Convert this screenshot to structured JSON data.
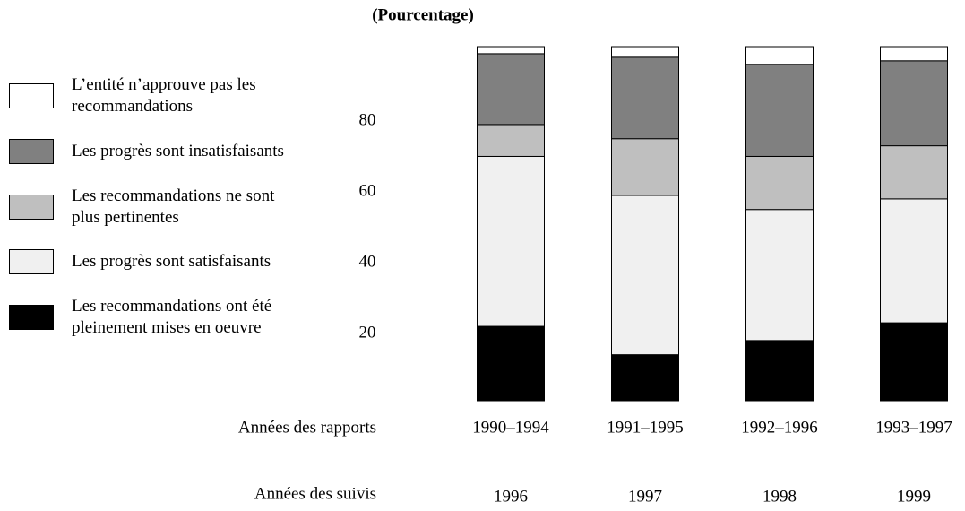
{
  "chart_data": {
    "type": "stacked_bar",
    "title": "(Pourcentage)",
    "categories_label": "Années des rapports",
    "categories": [
      "1990–1994",
      "1991–1995",
      "1992–1996",
      "1993–1997"
    ],
    "follow_up_label": "Années des suivis",
    "follow_up_years": [
      "1996",
      "1997",
      "1998",
      "1999"
    ],
    "ylim": [
      0,
      100
    ],
    "yticks": [
      20,
      40,
      60,
      80
    ],
    "series": [
      {
        "name": "Les recommandations ont été pleinement mises en oeuvre",
        "color": "#000000",
        "values": [
          21,
          13,
          17,
          22
        ]
      },
      {
        "name": "Les progrès sont satisfaisants",
        "color": "#f0f0f0",
        "values": [
          48,
          45,
          37,
          35
        ]
      },
      {
        "name": "Les recommandations ne sont plus pertinentes",
        "color": "#bfbfbf",
        "values": [
          9,
          16,
          15,
          15
        ]
      },
      {
        "name": "Les progrès sont insatisfaisants",
        "color": "#808080",
        "values": [
          20,
          23,
          26,
          24
        ]
      },
      {
        "name": "L’entité n’approuve pas les recommandations",
        "color": "#ffffff",
        "values": [
          2,
          3,
          5,
          4
        ]
      }
    ]
  }
}
